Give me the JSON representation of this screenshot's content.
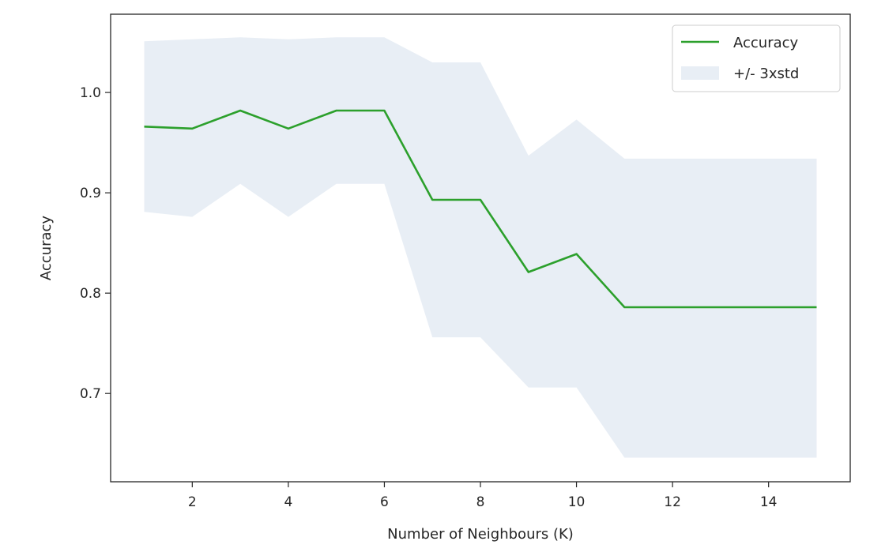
{
  "chart_data": {
    "type": "line",
    "title": "",
    "xlabel": "Number of Neighbours (K)",
    "ylabel": "Accuracy",
    "x": [
      1,
      2,
      3,
      4,
      5,
      6,
      7,
      8,
      9,
      10,
      11,
      12,
      13,
      14,
      15
    ],
    "xlim": [
      0.3,
      15.7
    ],
    "ylim": [
      0.612,
      1.078
    ],
    "xticks": [
      2,
      4,
      6,
      8,
      10,
      12,
      14
    ],
    "yticks": [
      0.7,
      0.8,
      0.9,
      1.0
    ],
    "xtick_labels": [
      "2",
      "4",
      "6",
      "8",
      "10",
      "12",
      "14"
    ],
    "ytick_labels": [
      "0.7",
      "0.8",
      "0.9",
      "1.0"
    ],
    "grid": false,
    "legend_position": "top-right",
    "series": [
      {
        "name": "Accuracy",
        "kind": "line",
        "color": "#2ca02c",
        "values": [
          0.966,
          0.964,
          0.982,
          0.964,
          0.982,
          0.982,
          0.893,
          0.893,
          0.821,
          0.839,
          0.786,
          0.786,
          0.786,
          0.786,
          0.786
        ]
      },
      {
        "name": "+/- 3xstd",
        "kind": "band",
        "color": "#e8eef5",
        "lower": [
          0.881,
          0.876,
          0.909,
          0.876,
          0.909,
          0.909,
          0.756,
          0.756,
          0.706,
          0.706,
          0.636,
          0.636,
          0.636,
          0.636,
          0.636
        ],
        "upper": [
          1.051,
          1.053,
          1.055,
          1.053,
          1.055,
          1.055,
          1.03,
          1.03,
          0.937,
          0.973,
          0.934,
          0.934,
          0.934,
          0.934,
          0.934
        ]
      }
    ]
  }
}
